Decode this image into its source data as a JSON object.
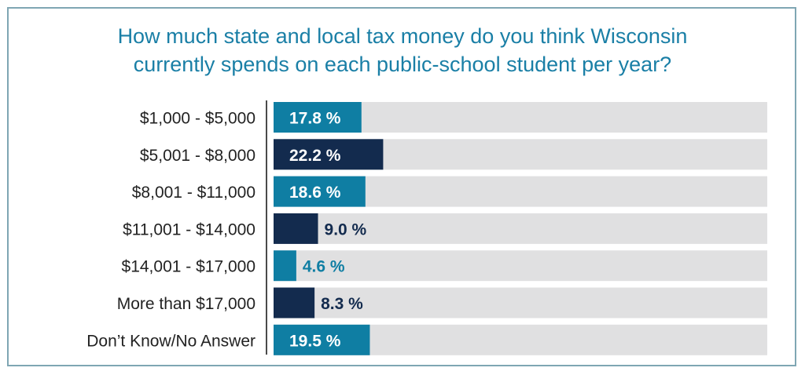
{
  "chart_data": {
    "type": "bar",
    "orientation": "horizontal",
    "title": "How much state and local tax money do you think Wisconsin currently spends on each public-school student per year?",
    "categories": [
      "$1,000 - $5,000",
      "$5,001 - $8,000",
      "$8,001 - $11,000",
      "$11,001 - $14,000",
      "$14,001 - $17,000",
      "More than $17,000",
      "Don’t Know/No Answer"
    ],
    "values": [
      17.8,
      22.2,
      18.6,
      9.0,
      4.6,
      8.3,
      19.5
    ],
    "value_labels": [
      "17.8 %",
      "22.2 %",
      "18.6 %",
      "9.0 %",
      "4.6 %",
      "8.3 %",
      "19.5 %"
    ],
    "xlim": [
      0,
      100
    ],
    "unit": "%",
    "grid": false,
    "legend": "none",
    "colors": {
      "teal": "#0f7ea3",
      "navy": "#132b4e",
      "track": "#e0e0e1",
      "label": "#222222",
      "title": "#1a7fa6"
    },
    "bar_colors": [
      "teal",
      "navy",
      "teal",
      "navy",
      "teal",
      "navy",
      "teal"
    ]
  }
}
